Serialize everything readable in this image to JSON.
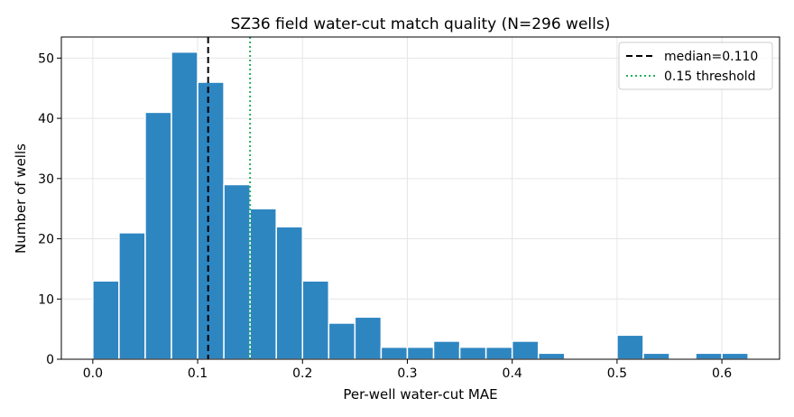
{
  "chart_data": {
    "type": "bar",
    "title": "SZ36 field water-cut match quality (N=296 wells)",
    "xlabel": "Per-well water-cut MAE",
    "ylabel": "Number of wells",
    "xlim": [
      -0.03,
      0.655
    ],
    "ylim": [
      0,
      53.5
    ],
    "xticks": [
      "0.0",
      "0.1",
      "0.2",
      "0.3",
      "0.4",
      "0.5",
      "0.6"
    ],
    "yticks": [
      "0",
      "10",
      "20",
      "30",
      "40",
      "50"
    ],
    "grid": true,
    "legend_position": "top-right",
    "bin_width": 0.025,
    "bin_start": 0.0,
    "values": [
      13,
      21,
      41,
      51,
      46,
      29,
      25,
      22,
      13,
      6,
      7,
      2,
      2,
      3,
      2,
      2,
      3,
      1,
      0,
      0,
      4,
      1,
      0,
      1,
      1
    ],
    "reference_lines": [
      {
        "label": "median=0.110",
        "x": 0.11,
        "style": "dashed",
        "color": "#000000"
      },
      {
        "label": "0.15 threshold",
        "x": 0.15,
        "style": "dotted",
        "color": "#27ae60"
      }
    ],
    "colors": {
      "bar": "#2e86c1"
    }
  }
}
